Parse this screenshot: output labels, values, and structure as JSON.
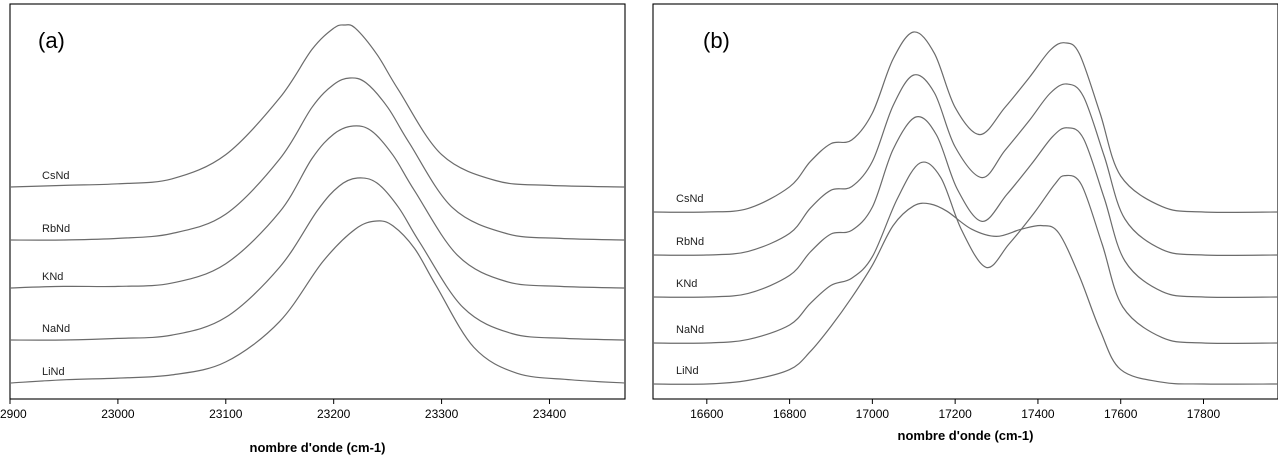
{
  "colors": {
    "line": "#6b6b6b",
    "frame": "#000000",
    "background": "#ffffff"
  },
  "chart_data": [
    {
      "type": "line",
      "panel_label": "(a)",
      "xlabel": "nombre d'onde (cm-1)",
      "ylabel": "",
      "xlim": [
        22900,
        23470
      ],
      "xticks": [
        22900,
        23000,
        23100,
        23200,
        23300,
        23400
      ],
      "y_axis_ticks": false,
      "grid": false,
      "legend": "inline labels at left of each trace",
      "series": [
        {
          "name": "CsNd",
          "x": [
            22900,
            22950,
            23000,
            23050,
            23100,
            23150,
            23180,
            23200,
            23210,
            23220,
            23240,
            23260,
            23300,
            23350,
            23400,
            23470
          ],
          "y": [
            0.0,
            0.01,
            0.02,
            0.05,
            0.2,
            0.55,
            0.85,
            0.98,
            1.0,
            0.98,
            0.82,
            0.6,
            0.2,
            0.04,
            0.01,
            0.0
          ]
        },
        {
          "name": "RbNd",
          "x": [
            22900,
            22950,
            23000,
            23050,
            23100,
            23150,
            23180,
            23200,
            23215,
            23230,
            23250,
            23270,
            23310,
            23360,
            23410,
            23470
          ],
          "y": [
            0.0,
            0.0,
            0.01,
            0.04,
            0.16,
            0.5,
            0.82,
            0.96,
            1.0,
            0.97,
            0.82,
            0.6,
            0.2,
            0.04,
            0.01,
            0.0
          ]
        },
        {
          "name": "KNd",
          "x": [
            22900,
            22950,
            23000,
            23050,
            23100,
            23150,
            23180,
            23200,
            23218,
            23235,
            23255,
            23275,
            23315,
            23360,
            23410,
            23470
          ],
          "y": [
            0.0,
            0.01,
            0.01,
            0.03,
            0.15,
            0.47,
            0.8,
            0.95,
            1.0,
            0.97,
            0.82,
            0.6,
            0.2,
            0.04,
            0.01,
            0.0
          ]
        },
        {
          "name": "NaNd",
          "x": [
            22900,
            22950,
            23000,
            23050,
            23100,
            23150,
            23185,
            23205,
            23222,
            23240,
            23260,
            23280,
            23320,
            23365,
            23415,
            23470
          ],
          "y": [
            0.0,
            0.0,
            0.01,
            0.03,
            0.14,
            0.45,
            0.8,
            0.95,
            1.0,
            0.97,
            0.82,
            0.6,
            0.2,
            0.04,
            0.01,
            0.0
          ]
        },
        {
          "name": "LiNd",
          "x": [
            22900,
            22950,
            23000,
            23050,
            23100,
            23150,
            23190,
            23220,
            23240,
            23255,
            23275,
            23295,
            23330,
            23370,
            23420,
            23470
          ],
          "y": [
            0.0,
            0.02,
            0.03,
            0.05,
            0.13,
            0.38,
            0.75,
            0.95,
            1.0,
            0.97,
            0.83,
            0.6,
            0.22,
            0.06,
            0.02,
            0.0
          ]
        }
      ]
    },
    {
      "type": "line",
      "panel_label": "(b)",
      "xlabel": "nombre d'onde (cm-1)",
      "ylabel": "",
      "xlim": [
        16470,
        17980
      ],
      "xticks": [
        16600,
        16800,
        17000,
        17200,
        17400,
        17600,
        17800
      ],
      "y_axis_ticks": false,
      "grid": false,
      "legend": "inline labels at left of each trace",
      "series": [
        {
          "name": "CsNd",
          "x": [
            16470,
            16600,
            16700,
            16800,
            16850,
            16900,
            16950,
            17000,
            17050,
            17100,
            17150,
            17200,
            17260,
            17320,
            17380,
            17430,
            17465,
            17500,
            17550,
            17600,
            17700,
            17800,
            17980
          ],
          "y": [
            0.0,
            0.0,
            0.02,
            0.14,
            0.28,
            0.38,
            0.4,
            0.55,
            0.85,
            1.0,
            0.88,
            0.58,
            0.43,
            0.58,
            0.75,
            0.9,
            0.94,
            0.88,
            0.55,
            0.2,
            0.03,
            0.0,
            0.0
          ]
        },
        {
          "name": "RbNd",
          "x": [
            16470,
            16600,
            16700,
            16800,
            16850,
            16900,
            16950,
            17000,
            17050,
            17100,
            17150,
            17200,
            17265,
            17320,
            17380,
            17430,
            17470,
            17510,
            17560,
            17610,
            17700,
            17800,
            17980
          ],
          "y": [
            0.0,
            0.0,
            0.02,
            0.12,
            0.26,
            0.36,
            0.38,
            0.52,
            0.83,
            1.0,
            0.9,
            0.6,
            0.43,
            0.58,
            0.75,
            0.9,
            0.95,
            0.88,
            0.55,
            0.2,
            0.03,
            0.0,
            0.0
          ]
        },
        {
          "name": "KNd",
          "x": [
            16470,
            16600,
            16700,
            16800,
            16850,
            16900,
            16950,
            17000,
            17050,
            17105,
            17155,
            17205,
            17265,
            17325,
            17385,
            17435,
            17470,
            17510,
            17560,
            17610,
            17700,
            17800,
            17980
          ],
          "y": [
            0.0,
            0.0,
            0.02,
            0.12,
            0.25,
            0.35,
            0.37,
            0.5,
            0.82,
            1.0,
            0.9,
            0.6,
            0.42,
            0.57,
            0.74,
            0.89,
            0.94,
            0.88,
            0.55,
            0.2,
            0.03,
            0.0,
            0.0
          ]
        },
        {
          "name": "NaNd",
          "x": [
            16470,
            16600,
            16700,
            16800,
            16850,
            16900,
            16950,
            17000,
            17060,
            17115,
            17165,
            17215,
            17275,
            17330,
            17390,
            17440,
            17465,
            17505,
            17555,
            17605,
            17700,
            17800,
            17980
          ],
          "y": [
            0.0,
            0.0,
            0.02,
            0.1,
            0.22,
            0.32,
            0.36,
            0.48,
            0.8,
            1.0,
            0.92,
            0.63,
            0.42,
            0.55,
            0.72,
            0.88,
            0.93,
            0.88,
            0.55,
            0.2,
            0.03,
            0.0,
            0.0
          ]
        },
        {
          "name": "LiNd",
          "x": [
            16470,
            16600,
            16700,
            16800,
            16850,
            16900,
            16950,
            17000,
            17050,
            17100,
            17140,
            17180,
            17240,
            17300,
            17360,
            17410,
            17450,
            17500,
            17550,
            17600,
            17700,
            17800,
            17980
          ],
          "y": [
            0.0,
            0.0,
            0.02,
            0.08,
            0.18,
            0.32,
            0.48,
            0.66,
            0.88,
            0.99,
            1.0,
            0.96,
            0.86,
            0.82,
            0.86,
            0.88,
            0.84,
            0.6,
            0.3,
            0.08,
            0.01,
            0.0,
            0.0
          ]
        }
      ]
    }
  ]
}
